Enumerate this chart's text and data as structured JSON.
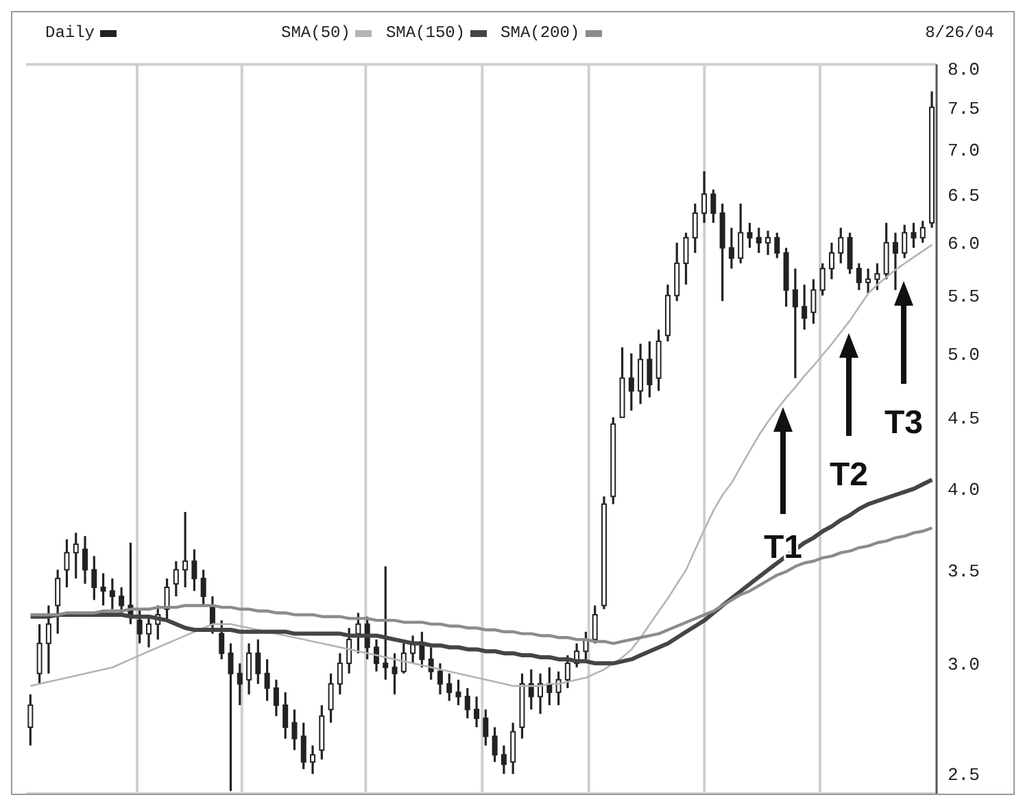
{
  "chart_data": {
    "type": "candlestick",
    "categories": [
      null,
      null,
      null,
      null,
      null,
      null,
      null,
      null,
      null,
      null,
      null,
      null,
      null,
      null,
      null,
      null,
      null,
      null,
      null,
      null,
      null,
      null,
      null,
      null,
      null,
      null,
      null,
      null,
      null,
      null,
      null,
      null,
      null,
      null,
      null,
      null,
      null,
      null,
      null,
      null,
      null,
      null,
      null,
      null,
      null,
      null,
      null,
      null,
      null,
      null,
      null,
      null,
      null,
      null,
      null,
      null,
      null,
      null,
      null,
      null,
      null,
      null,
      null,
      null,
      null,
      null,
      null,
      null,
      null,
      null,
      null,
      null,
      null,
      null,
      null,
      null,
      null,
      null,
      null,
      null,
      null,
      null,
      null,
      null,
      null,
      null,
      null,
      null,
      null,
      null,
      null,
      null,
      null,
      null,
      null,
      null,
      null,
      null,
      null,
      null
    ],
    "series": [
      {
        "name": "Daily",
        "color": "#222222",
        "ohlc": [
          [
            2.7,
            2.85,
            2.62,
            2.8
          ],
          [
            2.95,
            3.2,
            2.9,
            3.1
          ],
          [
            3.1,
            3.3,
            2.95,
            3.2
          ],
          [
            3.3,
            3.5,
            3.15,
            3.45
          ],
          [
            3.5,
            3.68,
            3.4,
            3.6
          ],
          [
            3.6,
            3.72,
            3.45,
            3.65
          ],
          [
            3.62,
            3.7,
            3.42,
            3.5
          ],
          [
            3.5,
            3.58,
            3.33,
            3.4
          ],
          [
            3.4,
            3.48,
            3.3,
            3.38
          ],
          [
            3.38,
            3.45,
            3.28,
            3.35
          ],
          [
            3.35,
            3.4,
            3.25,
            3.3
          ],
          [
            3.3,
            3.66,
            3.2,
            3.25
          ],
          [
            3.22,
            3.28,
            3.1,
            3.15
          ],
          [
            3.15,
            3.25,
            3.08,
            3.2
          ],
          [
            3.2,
            3.3,
            3.12,
            3.25
          ],
          [
            3.28,
            3.45,
            3.22,
            3.4
          ],
          [
            3.42,
            3.55,
            3.35,
            3.5
          ],
          [
            3.5,
            3.85,
            3.4,
            3.55
          ],
          [
            3.55,
            3.62,
            3.38,
            3.45
          ],
          [
            3.45,
            3.5,
            3.3,
            3.35
          ],
          [
            3.3,
            3.35,
            3.15,
            3.2
          ],
          [
            3.15,
            3.22,
            3.02,
            3.05
          ],
          [
            3.05,
            3.1,
            2.43,
            2.95
          ],
          [
            2.95,
            3.0,
            2.8,
            2.9
          ],
          [
            2.92,
            3.1,
            2.85,
            3.05
          ],
          [
            3.05,
            3.12,
            2.9,
            2.95
          ],
          [
            2.95,
            3.02,
            2.82,
            2.88
          ],
          [
            2.88,
            2.92,
            2.75,
            2.8
          ],
          [
            2.8,
            2.86,
            2.65,
            2.7
          ],
          [
            2.72,
            2.78,
            2.6,
            2.65
          ],
          [
            2.66,
            2.72,
            2.52,
            2.55
          ],
          [
            2.55,
            2.62,
            2.5,
            2.58
          ],
          [
            2.6,
            2.8,
            2.56,
            2.75
          ],
          [
            2.78,
            2.95,
            2.72,
            2.9
          ],
          [
            2.9,
            3.05,
            2.85,
            3.0
          ],
          [
            3.0,
            3.18,
            2.95,
            3.12
          ],
          [
            3.15,
            3.26,
            3.05,
            3.2
          ],
          [
            3.2,
            3.24,
            3.02,
            3.08
          ],
          [
            3.08,
            3.12,
            2.96,
            3.0
          ],
          [
            3.0,
            3.52,
            2.92,
            2.98
          ],
          [
            2.98,
            3.05,
            2.85,
            2.95
          ],
          [
            2.96,
            3.1,
            2.95,
            3.05
          ],
          [
            3.05,
            3.14,
            3.0,
            3.1
          ],
          [
            3.1,
            3.16,
            2.98,
            3.02
          ],
          [
            3.02,
            3.08,
            2.92,
            2.96
          ],
          [
            2.96,
            3.0,
            2.85,
            2.9
          ],
          [
            2.9,
            2.95,
            2.82,
            2.86
          ],
          [
            2.86,
            2.92,
            2.8,
            2.84
          ],
          [
            2.84,
            2.88,
            2.74,
            2.78
          ],
          [
            2.78,
            2.84,
            2.7,
            2.74
          ],
          [
            2.74,
            2.78,
            2.62,
            2.66
          ],
          [
            2.66,
            2.7,
            2.55,
            2.58
          ],
          [
            2.58,
            2.62,
            2.5,
            2.54
          ],
          [
            2.55,
            2.72,
            2.5,
            2.68
          ],
          [
            2.7,
            2.95,
            2.65,
            2.9
          ],
          [
            2.9,
            2.97,
            2.78,
            2.84
          ],
          [
            2.84,
            2.95,
            2.76,
            2.9
          ],
          [
            2.9,
            2.98,
            2.8,
            2.86
          ],
          [
            2.86,
            2.96,
            2.8,
            2.92
          ],
          [
            2.92,
            3.04,
            2.88,
            3.0
          ],
          [
            3.0,
            3.1,
            2.98,
            3.06
          ],
          [
            3.06,
            3.16,
            3.02,
            3.12
          ],
          [
            3.12,
            3.3,
            3.1,
            3.25
          ],
          [
            3.3,
            3.95,
            3.28,
            3.9
          ],
          [
            3.95,
            4.5,
            3.9,
            4.45
          ],
          [
            4.5,
            5.05,
            4.5,
            4.8
          ],
          [
            4.8,
            5.0,
            4.55,
            4.7
          ],
          [
            4.7,
            5.08,
            4.6,
            4.95
          ],
          [
            4.95,
            5.1,
            4.65,
            4.75
          ],
          [
            4.8,
            5.2,
            4.7,
            5.1
          ],
          [
            5.15,
            5.6,
            5.1,
            5.5
          ],
          [
            5.5,
            6.0,
            5.45,
            5.8
          ],
          [
            5.8,
            6.1,
            5.6,
            6.05
          ],
          [
            6.05,
            6.4,
            5.9,
            6.3
          ],
          [
            6.3,
            6.75,
            6.2,
            6.5
          ],
          [
            6.5,
            6.55,
            6.2,
            6.3
          ],
          [
            6.3,
            6.4,
            5.45,
            5.95
          ],
          [
            5.95,
            6.15,
            5.75,
            5.85
          ],
          [
            5.85,
            6.4,
            5.8,
            6.1
          ],
          [
            6.1,
            6.2,
            5.95,
            6.05
          ],
          [
            6.05,
            6.15,
            5.9,
            6.0
          ],
          [
            6.0,
            6.12,
            5.88,
            6.05
          ],
          [
            6.05,
            6.1,
            5.85,
            5.9
          ],
          [
            5.9,
            5.95,
            5.4,
            5.55
          ],
          [
            5.55,
            5.75,
            4.8,
            5.4
          ],
          [
            5.4,
            5.6,
            5.2,
            5.3
          ],
          [
            5.35,
            5.65,
            5.25,
            5.55
          ],
          [
            5.55,
            5.8,
            5.5,
            5.75
          ],
          [
            5.75,
            6.0,
            5.65,
            5.9
          ],
          [
            5.9,
            6.15,
            5.8,
            6.05
          ],
          [
            6.05,
            6.1,
            5.7,
            5.75
          ],
          [
            5.75,
            5.8,
            5.55,
            5.62
          ],
          [
            5.62,
            5.75,
            5.52,
            5.65
          ],
          [
            5.65,
            5.8,
            5.55,
            5.7
          ],
          [
            5.7,
            6.2,
            5.65,
            6.0
          ],
          [
            6.0,
            6.1,
            5.55,
            5.9
          ],
          [
            5.9,
            6.18,
            5.85,
            6.1
          ],
          [
            6.1,
            6.2,
            5.95,
            6.05
          ],
          [
            6.05,
            6.22,
            6.0,
            6.15
          ],
          [
            6.2,
            7.7,
            6.15,
            7.5
          ]
        ]
      },
      {
        "name": "SMA(50)",
        "type": "line",
        "color": "#b4b4b4",
        "values": [
          2.89,
          2.9,
          2.91,
          2.92,
          2.93,
          2.94,
          2.95,
          2.96,
          2.97,
          2.98,
          3.0,
          3.02,
          3.04,
          3.06,
          3.08,
          3.1,
          3.12,
          3.14,
          3.16,
          3.18,
          3.2,
          3.2,
          3.2,
          3.19,
          3.18,
          3.17,
          3.16,
          3.15,
          3.14,
          3.13,
          3.12,
          3.11,
          3.1,
          3.09,
          3.08,
          3.07,
          3.06,
          3.05,
          3.04,
          3.03,
          3.02,
          3.01,
          3.0,
          2.99,
          2.98,
          2.97,
          2.96,
          2.95,
          2.94,
          2.93,
          2.92,
          2.91,
          2.9,
          2.89,
          2.89,
          2.89,
          2.89,
          2.9,
          2.9,
          2.91,
          2.92,
          2.93,
          2.95,
          2.97,
          3.0,
          3.03,
          3.07,
          3.13,
          3.2,
          3.27,
          3.34,
          3.42,
          3.5,
          3.62,
          3.74,
          3.86,
          3.96,
          4.04,
          4.15,
          4.26,
          4.37,
          4.47,
          4.56,
          4.65,
          4.73,
          4.82,
          4.9,
          4.99,
          5.08,
          5.18,
          5.28,
          5.4,
          5.52,
          5.6,
          5.67,
          5.74,
          5.8,
          5.86,
          5.92,
          5.98
        ]
      },
      {
        "name": "SMA(150)",
        "type": "line",
        "color": "#454545",
        "values": [
          3.24,
          3.24,
          3.24,
          3.25,
          3.25,
          3.25,
          3.25,
          3.25,
          3.25,
          3.25,
          3.25,
          3.24,
          3.24,
          3.24,
          3.23,
          3.22,
          3.2,
          3.18,
          3.17,
          3.17,
          3.17,
          3.17,
          3.17,
          3.16,
          3.16,
          3.16,
          3.16,
          3.16,
          3.16,
          3.15,
          3.15,
          3.15,
          3.15,
          3.15,
          3.15,
          3.14,
          3.14,
          3.14,
          3.14,
          3.13,
          3.12,
          3.11,
          3.1,
          3.1,
          3.09,
          3.09,
          3.08,
          3.08,
          3.07,
          3.07,
          3.06,
          3.06,
          3.05,
          3.05,
          3.04,
          3.04,
          3.03,
          3.03,
          3.02,
          3.02,
          3.01,
          3.01,
          3.0,
          3.0,
          3.0,
          3.01,
          3.02,
          3.04,
          3.06,
          3.08,
          3.1,
          3.13,
          3.16,
          3.19,
          3.22,
          3.26,
          3.3,
          3.34,
          3.38,
          3.42,
          3.46,
          3.5,
          3.54,
          3.58,
          3.62,
          3.66,
          3.69,
          3.73,
          3.76,
          3.8,
          3.83,
          3.87,
          3.9,
          3.92,
          3.94,
          3.96,
          3.98,
          4.0,
          4.03,
          4.06
        ]
      },
      {
        "name": "SMA(200)",
        "type": "line",
        "color": "#8c8c8c",
        "values": [
          3.25,
          3.25,
          3.25,
          3.25,
          3.26,
          3.26,
          3.26,
          3.26,
          3.27,
          3.27,
          3.27,
          3.28,
          3.28,
          3.28,
          3.29,
          3.29,
          3.29,
          3.3,
          3.3,
          3.3,
          3.3,
          3.29,
          3.29,
          3.28,
          3.28,
          3.27,
          3.27,
          3.26,
          3.26,
          3.25,
          3.25,
          3.25,
          3.24,
          3.24,
          3.24,
          3.23,
          3.23,
          3.23,
          3.22,
          3.22,
          3.22,
          3.21,
          3.21,
          3.21,
          3.2,
          3.2,
          3.19,
          3.19,
          3.18,
          3.18,
          3.17,
          3.17,
          3.16,
          3.16,
          3.15,
          3.15,
          3.14,
          3.14,
          3.13,
          3.13,
          3.12,
          3.12,
          3.11,
          3.11,
          3.1,
          3.11,
          3.12,
          3.13,
          3.14,
          3.15,
          3.17,
          3.19,
          3.21,
          3.23,
          3.25,
          3.27,
          3.3,
          3.33,
          3.36,
          3.38,
          3.41,
          3.44,
          3.47,
          3.49,
          3.52,
          3.54,
          3.55,
          3.57,
          3.58,
          3.6,
          3.61,
          3.63,
          3.64,
          3.66,
          3.67,
          3.69,
          3.7,
          3.72,
          3.73,
          3.75
        ]
      }
    ],
    "ylim": [
      2.42,
      8.05
    ],
    "yticks": [
      {
        "value": 2.5,
        "label": "2.5"
      },
      {
        "value": 3,
        "label": "3.0"
      },
      {
        "value": 3.5,
        "label": "3.5"
      },
      {
        "value": 4,
        "label": "4.0"
      },
      {
        "value": 4.5,
        "label": "4.5"
      },
      {
        "value": 5,
        "label": "5.0"
      },
      {
        "value": 5.5,
        "label": "5.5"
      },
      {
        "value": 6,
        "label": "6.0"
      },
      {
        "value": 6.5,
        "label": "6.5"
      },
      {
        "value": 7,
        "label": "7.0"
      },
      {
        "value": 7.5,
        "label": "7.5"
      },
      {
        "value": 8,
        "label": "8.0"
      }
    ],
    "log": "y",
    "grid": true,
    "legend": "top",
    "tick_labels": "y",
    "annotations": [
      "8/26/04",
      "T1",
      "T2",
      "T3"
    ]
  }
}
